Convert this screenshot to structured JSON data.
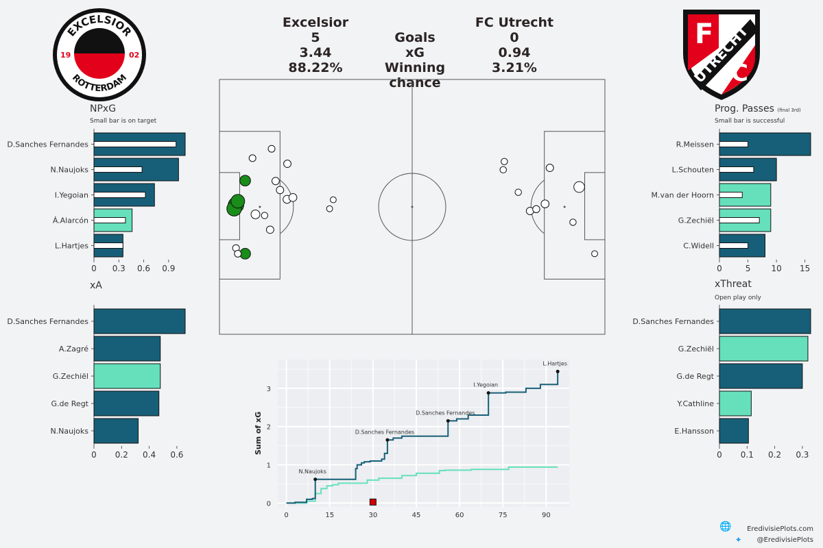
{
  "scoreboard": {
    "home_team": "Excelsior",
    "away_team": "FC Utrecht",
    "rows": [
      {
        "label": "",
        "home": "Excelsior",
        "away": "FC Utrecht"
      },
      {
        "label": "Goals",
        "home": "5",
        "away": "0"
      },
      {
        "label": "xG",
        "home": "3.44",
        "away": "0.94"
      },
      {
        "label": "Winning chance",
        "home": "88.22%",
        "away": "3.21%"
      }
    ]
  },
  "logos": {
    "home": {
      "top_text": "EXCELSIOR",
      "bottom_text": "ROTTERDAM",
      "year_left": "19",
      "year_right": "02"
    },
    "away": {
      "text": "UTRECHT",
      "letter_f": "F",
      "letter_c": "C"
    }
  },
  "colors": {
    "home": "#175f78",
    "away": "#66e0bb",
    "shot_goal": "#1a8c1a",
    "step_home": "#175f78",
    "step_away": "#66e0bb",
    "redcard": "#d00000"
  },
  "panels": {
    "npxg": {
      "title": "NPxG",
      "subtitle": "Small bar is on target"
    },
    "xa": {
      "title": "xA"
    },
    "prog": {
      "title": "Prog. Passes",
      "title_note": "(final 3rd)",
      "subtitle": "Small bar is successful"
    },
    "xthreat": {
      "title": "xThreat",
      "subtitle": "Open play only"
    }
  },
  "footer": {
    "site": "EredivisiePlots.com",
    "handle": "@EredivisiePlots"
  },
  "chart_data": [
    {
      "id": "npxg",
      "type": "bar",
      "orientation": "horizontal",
      "title": "NPxG",
      "subtitle": "Small bar is on target",
      "categories": [
        "D.Sanches Fernandes",
        "N.Naujoks",
        "I.Yegoian",
        "Á.Alarcón",
        "L.Hartjes"
      ],
      "series": [
        {
          "name": "NPxG",
          "values": [
            1.1,
            1.02,
            0.73,
            0.46,
            0.35
          ]
        },
        {
          "name": "On target",
          "values": [
            0.99,
            0.58,
            0.62,
            0.38,
            0.35
          ]
        }
      ],
      "team": [
        "home",
        "home",
        "home",
        "away",
        "home"
      ],
      "xlim": [
        0,
        1.1
      ],
      "xticks": [
        0.0,
        0.3,
        0.6,
        0.9
      ]
    },
    {
      "id": "xa",
      "type": "bar",
      "orientation": "horizontal",
      "title": "xA",
      "categories": [
        "D.Sanches Fernandes",
        "A.Zagré",
        "G.Zechiël",
        "G.de Regt",
        "N.Naujoks"
      ],
      "series": [
        {
          "name": "xA",
          "values": [
            0.66,
            0.48,
            0.48,
            0.47,
            0.32
          ]
        }
      ],
      "team": [
        "home",
        "home",
        "away",
        "home",
        "home"
      ],
      "xlim": [
        0,
        0.66
      ],
      "xticks": [
        0.0,
        0.2,
        0.4,
        0.6
      ]
    },
    {
      "id": "prog",
      "type": "bar",
      "orientation": "horizontal",
      "title": "Prog. Passes",
      "subtitle": "Small bar is successful",
      "categories": [
        "R.Meissen",
        "L.Schouten",
        "M.van der Hoorn",
        "G.Zechiël",
        "C.Widell"
      ],
      "series": [
        {
          "name": "Progressive passes",
          "values": [
            16,
            10,
            9,
            9,
            8
          ]
        },
        {
          "name": "Successful",
          "values": [
            5,
            6,
            4,
            7,
            5
          ]
        }
      ],
      "team": [
        "home",
        "home",
        "away",
        "away",
        "home"
      ],
      "xlim": [
        0,
        16
      ],
      "xticks": [
        0,
        5,
        10,
        15
      ]
    },
    {
      "id": "xthreat",
      "type": "bar",
      "orientation": "horizontal",
      "title": "xThreat",
      "subtitle": "Open play only",
      "categories": [
        "D.Sanches Fernandes",
        "G.Zechiël",
        "G.de Regt",
        "Y.Cathline",
        "E.Hansson"
      ],
      "series": [
        {
          "name": "xThreat",
          "values": [
            0.33,
            0.32,
            0.3,
            0.115,
            0.105
          ]
        }
      ],
      "team": [
        "home",
        "away",
        "home",
        "away",
        "home"
      ],
      "xlim": [
        0,
        0.33
      ],
      "xticks": [
        0.0,
        0.1,
        0.2,
        0.3
      ]
    },
    {
      "id": "shotmap",
      "type": "scatter",
      "pitch": {
        "length": 105,
        "width": 68
      },
      "home_shots": [
        {
          "x": 4.5,
          "y": 45,
          "xg": 0.02,
          "goal": false
        },
        {
          "x": 7,
          "y": 27,
          "xg": 0.12,
          "goal": true
        },
        {
          "x": 4.5,
          "y": 33.5,
          "xg": 0.35,
          "goal": true
        },
        {
          "x": 4,
          "y": 34.5,
          "xg": 0.3,
          "goal": true
        },
        {
          "x": 5,
          "y": 32.5,
          "xg": 0.25,
          "goal": true
        },
        {
          "x": 9.8,
          "y": 36,
          "xg": 0.06,
          "goal": false
        },
        {
          "x": 13.8,
          "y": 40.1,
          "xg": 0.03,
          "goal": false
        },
        {
          "x": 7,
          "y": 46.5,
          "xg": 0.12,
          "goal": true
        },
        {
          "x": 12.3,
          "y": 36.3,
          "xg": 0.015,
          "goal": false
        },
        {
          "x": 18.4,
          "y": 32,
          "xg": 0.04,
          "goal": false
        },
        {
          "x": 20,
          "y": 31.5,
          "xg": 0.04,
          "goal": false
        },
        {
          "x": 16.5,
          "y": 29.5,
          "xg": 0.03,
          "goal": false
        },
        {
          "x": 15.3,
          "y": 27.1,
          "xg": 0.03,
          "goal": false
        },
        {
          "x": 18.5,
          "y": 22.5,
          "xg": 0.03,
          "goal": false
        },
        {
          "x": 9,
          "y": 21,
          "xg": 0.02,
          "goal": false
        },
        {
          "x": 14.2,
          "y": 18.5,
          "xg": 0.02,
          "goal": false
        },
        {
          "x": 5,
          "y": 46.5,
          "xg": 0.02,
          "goal": false
        },
        {
          "x": 30,
          "y": 34.5,
          "xg": 0.01,
          "goal": false
        },
        {
          "x": 31,
          "y": 32.1,
          "xg": 0.01,
          "goal": false
        }
      ],
      "away_shots": [
        {
          "x": 81.4,
          "y": 30.1,
          "xg": 0.015,
          "goal": false
        },
        {
          "x": 84.6,
          "y": 35.1,
          "xg": 0.03,
          "goal": false
        },
        {
          "x": 86.3,
          "y": 34.6,
          "xg": 0.025,
          "goal": false
        },
        {
          "x": 88.7,
          "y": 33.2,
          "xg": 0.04,
          "goal": false
        },
        {
          "x": 96.3,
          "y": 38.1,
          "xg": 0.015,
          "goal": false
        },
        {
          "x": 102.2,
          "y": 46.5,
          "xg": 0.01,
          "goal": false
        },
        {
          "x": 98,
          "y": 28.7,
          "xg": 0.12,
          "goal": false
        },
        {
          "x": 90,
          "y": 23.6,
          "xg": 0.03,
          "goal": false
        },
        {
          "x": 77.3,
          "y": 24.1,
          "xg": 0.015,
          "goal": false
        },
        {
          "x": 77.6,
          "y": 21.9,
          "xg": 0.015,
          "goal": false
        }
      ]
    },
    {
      "id": "xg_timeline",
      "type": "line",
      "xlabel": "",
      "ylabel": "Sum of xG",
      "xlim": [
        -3,
        98
      ],
      "ylim": [
        -0.1,
        3.75
      ],
      "xticks": [
        0,
        15,
        30,
        45,
        60,
        75,
        90
      ],
      "yticks": [
        0,
        1,
        2,
        3
      ],
      "series": [
        {
          "name": "Excelsior",
          "team": "home",
          "x": [
            0,
            3,
            7,
            9,
            10,
            12,
            24,
            24.5,
            26,
            27,
            29,
            33,
            34,
            35,
            37,
            40,
            46,
            55,
            56,
            59,
            63,
            70,
            76,
            83,
            88,
            94
          ],
          "y": [
            0,
            0.02,
            0.1,
            0.12,
            0.62,
            0.62,
            0.9,
            1.0,
            1.05,
            1.08,
            1.1,
            1.15,
            1.3,
            1.65,
            1.7,
            1.75,
            1.75,
            1.75,
            2.15,
            2.2,
            2.3,
            2.88,
            2.9,
            3.0,
            3.1,
            3.44
          ]
        },
        {
          "name": "FC Utrecht",
          "team": "away",
          "x": [
            0,
            7,
            10,
            12,
            14,
            16,
            18,
            28,
            32,
            40,
            45,
            53,
            55,
            64,
            72,
            77,
            94
          ],
          "y": [
            0,
            0.05,
            0.25,
            0.38,
            0.45,
            0.48,
            0.52,
            0.6,
            0.65,
            0.72,
            0.78,
            0.85,
            0.86,
            0.88,
            0.88,
            0.94,
            0.94
          ]
        }
      ],
      "goal_markers": [
        {
          "x": 10,
          "y": 0.62,
          "label": "N.Naujoks"
        },
        {
          "x": 35,
          "y": 1.65,
          "label": "D.Sanches Fernandes"
        },
        {
          "x": 56,
          "y": 2.15,
          "label": "D.Sanches Fernandes"
        },
        {
          "x": 70,
          "y": 2.88,
          "label": "I.Yegoian"
        },
        {
          "x": 94,
          "y": 3.44,
          "label": "L.Hartjes"
        }
      ],
      "card_markers": [
        {
          "x": 30,
          "y": 0,
          "type": "red"
        }
      ]
    }
  ]
}
